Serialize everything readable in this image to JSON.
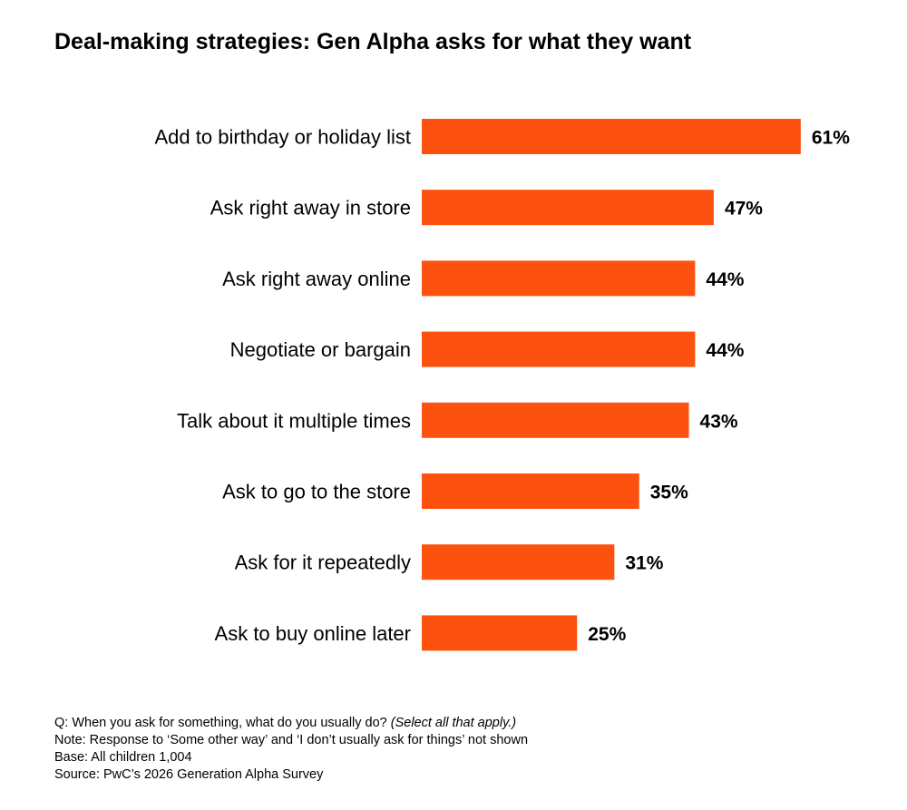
{
  "page": {
    "title": "Deal-making strategies: Gen Alpha asks for what they want"
  },
  "chart_data": {
    "type": "bar",
    "orientation": "horizontal",
    "title": "Deal-making strategies: Gen Alpha asks for what they want",
    "categories": [
      "Add to birthday or holiday list",
      "Ask right away in store",
      "Ask right away online",
      "Negotiate or bargain",
      "Talk about it multiple times",
      "Ask to go to the store",
      "Ask for it repeatedly",
      "Ask to buy online later"
    ],
    "values": [
      61,
      47,
      44,
      44,
      43,
      35,
      31,
      25
    ],
    "value_labels": [
      "61%",
      "47%",
      "44%",
      "44%",
      "43%",
      "35%",
      "31%",
      "25%"
    ],
    "unit": "%",
    "bar_color": "#fd5110",
    "grid": false,
    "legend": "none"
  },
  "notes": {
    "question": "Q: When you ask for something, what do you usually do?",
    "question_hint": "(Select all that apply.)",
    "note": "Note: Response to ‘Some other way’ and ‘I don’t usually ask for things’ not shown",
    "base": "Base: All children 1,004",
    "source": "Source: PwC’s 2026 Generation Alpha Survey"
  }
}
